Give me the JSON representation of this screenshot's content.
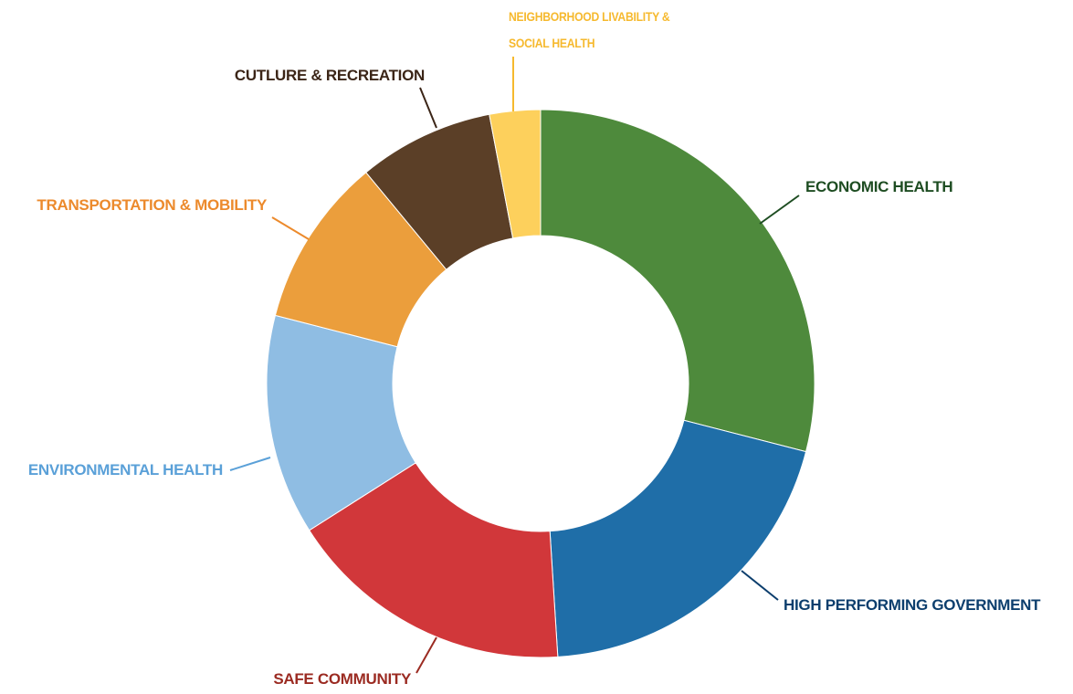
{
  "chart_data": {
    "type": "donut",
    "categories": [
      "ECONOMIC HEALTH",
      "HIGH PERFORMING GOVERNMENT",
      "SAFE COMMUNITY",
      "ENVIRONMENTAL HEALTH",
      "TRANSPORTATION & MOBILITY",
      "CUTLURE & RECREATION",
      "NEIGHBORHOOD LIVABILITY & SOCIAL HEALTH"
    ],
    "values": [
      29,
      20,
      17,
      13,
      10,
      8,
      3
    ],
    "colors": [
      "#4e8a3c",
      "#1f6ea8",
      "#d1373a",
      "#8fbde3",
      "#eb9e3c",
      "#5b3f27",
      "#fdd05c"
    ],
    "label_colors": [
      "#1e4d22",
      "#0c3e6d",
      "#9b2b22",
      "#5aa0d8",
      "#ec8a2c",
      "#3b2517",
      "#f6b92e"
    ]
  }
}
